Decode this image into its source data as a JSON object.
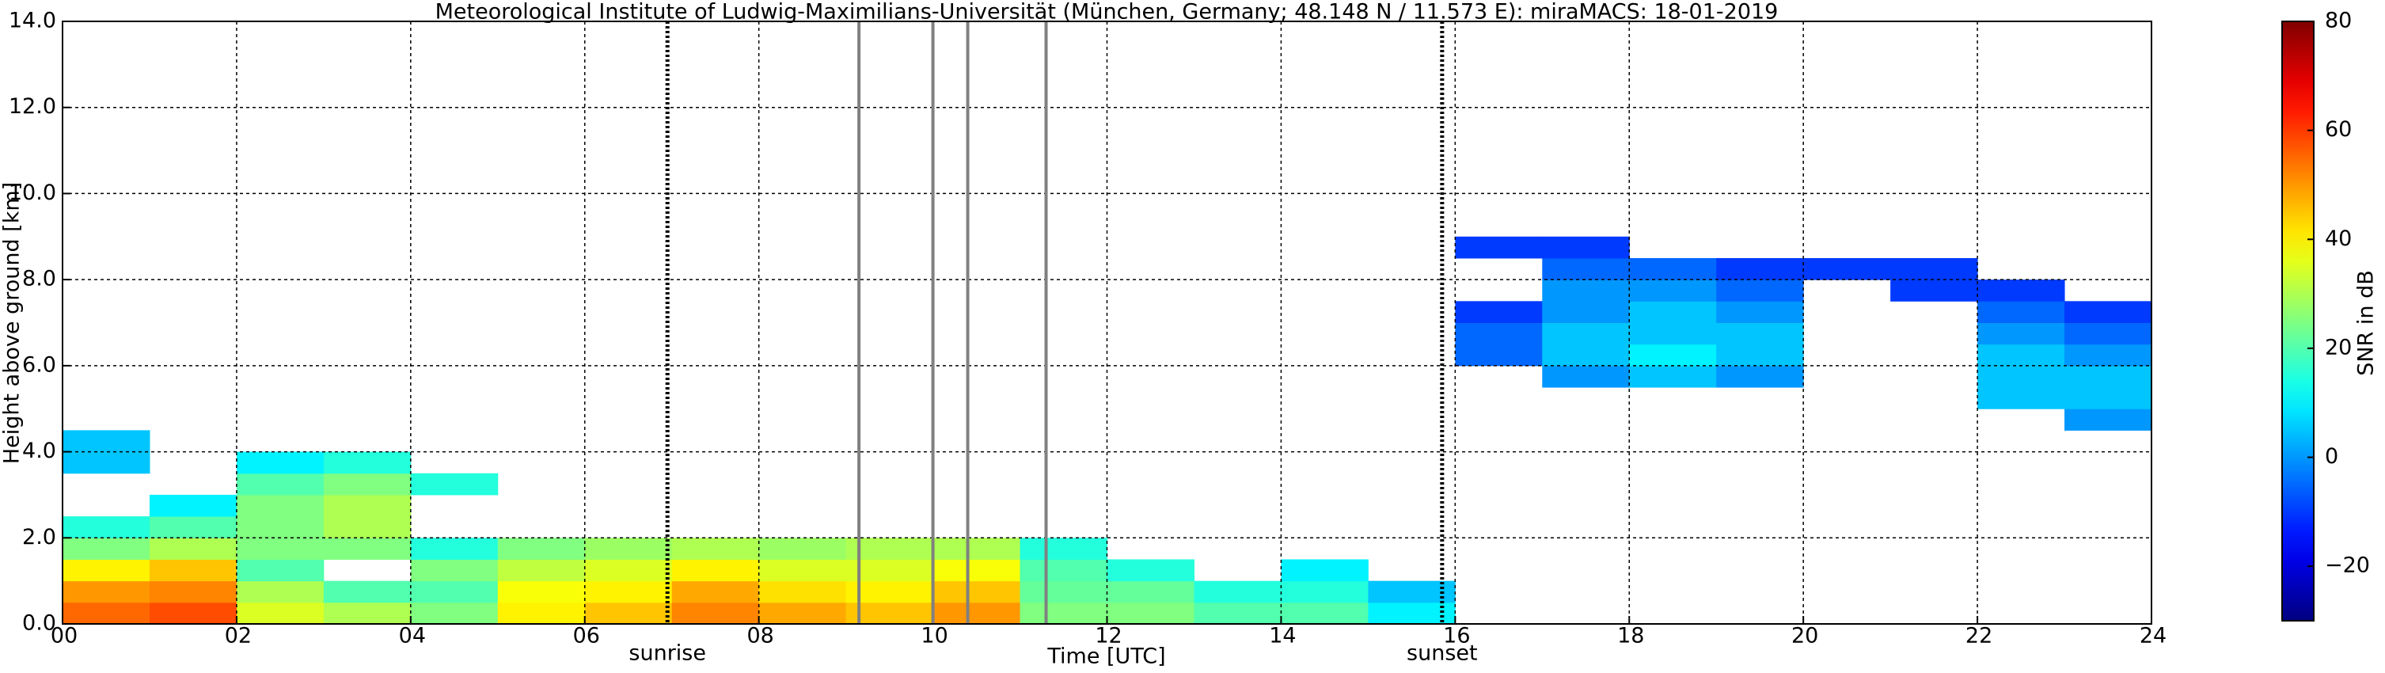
{
  "chart_data": {
    "type": "heatmap",
    "title": "Meteorological Institute of Ludwig-Maximilians-Universität (München, Germany; 48.148 N / 11.573 E):    miraMACS: 18-01-2019",
    "x_label": "Time [UTC]",
    "y_label": "Height above ground [km]",
    "colorbar_label": "SNR in dB",
    "xlim": [
      0,
      24
    ],
    "ylim": [
      0,
      14
    ],
    "xticks": [
      {
        "value": 0,
        "label": "00"
      },
      {
        "value": 2,
        "label": "02"
      },
      {
        "value": 4,
        "label": "04"
      },
      {
        "value": 6,
        "label": "06"
      },
      {
        "value": 8,
        "label": "08"
      },
      {
        "value": 10,
        "label": "10"
      },
      {
        "value": 12,
        "label": "12"
      },
      {
        "value": 14,
        "label": "14"
      },
      {
        "value": 16,
        "label": "16"
      },
      {
        "value": 18,
        "label": "18"
      },
      {
        "value": 20,
        "label": "20"
      },
      {
        "value": 22,
        "label": "22"
      },
      {
        "value": 24,
        "label": "24"
      }
    ],
    "yticks": [
      {
        "value": 0,
        "label": "0.0"
      },
      {
        "value": 2,
        "label": "2.0"
      },
      {
        "value": 4,
        "label": "4.0"
      },
      {
        "value": 6,
        "label": "6.0"
      },
      {
        "value": 8,
        "label": "8.0"
      },
      {
        "value": 10,
        "label": "10.0"
      },
      {
        "value": 12,
        "label": "12.0"
      },
      {
        "value": 14,
        "label": "14.0"
      }
    ],
    "clim": [
      -30,
      80
    ],
    "cticks": [
      {
        "value": -20,
        "label": "−20"
      },
      0,
      20,
      40,
      60,
      80
    ],
    "colormap": "jet",
    "grid": true,
    "markers": [
      {
        "x": 6.95,
        "label": "sunrise"
      },
      {
        "x": 15.85,
        "label": "sunset"
      }
    ],
    "vlines": [
      9.15,
      10.0,
      10.4,
      11.3
    ],
    "x_bins": [
      0,
      1,
      2,
      3,
      4,
      5,
      6,
      7,
      8,
      9,
      10,
      11,
      12,
      13,
      14,
      15,
      16,
      17,
      18,
      19,
      20,
      21,
      22,
      23,
      24
    ],
    "y_bins": [
      0,
      0.5,
      1,
      1.5,
      2,
      2.5,
      3,
      3.5,
      4,
      4.5,
      5,
      5.5,
      6,
      6.5,
      7,
      7.5,
      8,
      8.5,
      9
    ],
    "z": [
      [
        55,
        58,
        35,
        30,
        25,
        40,
        45,
        52,
        48,
        45,
        50,
        25,
        25,
        20,
        20,
        10,
        null,
        null,
        null,
        null,
        null,
        null,
        null,
        null
      ],
      [
        50,
        52,
        30,
        20,
        20,
        38,
        40,
        48,
        42,
        40,
        45,
        22,
        22,
        15,
        15,
        5,
        null,
        null,
        null,
        null,
        null,
        null,
        null,
        null
      ],
      [
        40,
        45,
        20,
        null,
        25,
        32,
        35,
        40,
        35,
        35,
        38,
        20,
        15,
        null,
        10,
        null,
        null,
        null,
        null,
        null,
        null,
        null,
        null,
        null
      ],
      [
        25,
        30,
        25,
        25,
        15,
        25,
        28,
        30,
        28,
        30,
        30,
        15,
        null,
        null,
        null,
        null,
        null,
        null,
        null,
        null,
        null,
        null,
        null,
        null
      ],
      [
        15,
        20,
        25,
        30,
        null,
        null,
        null,
        null,
        null,
        null,
        null,
        null,
        null,
        null,
        null,
        null,
        null,
        null,
        null,
        null,
        null,
        null,
        null,
        null
      ],
      [
        null,
        10,
        25,
        30,
        null,
        null,
        null,
        null,
        null,
        null,
        null,
        null,
        null,
        null,
        null,
        null,
        null,
        null,
        null,
        null,
        null,
        null,
        null,
        null
      ],
      [
        null,
        null,
        20,
        25,
        15,
        null,
        null,
        null,
        null,
        null,
        null,
        null,
        null,
        null,
        null,
        null,
        null,
        null,
        null,
        null,
        null,
        null,
        null,
        null
      ],
      [
        5,
        null,
        10,
        15,
        null,
        null,
        null,
        null,
        null,
        null,
        null,
        null,
        null,
        null,
        null,
        null,
        null,
        null,
        null,
        null,
        null,
        null,
        null,
        null
      ],
      [
        5,
        null,
        null,
        null,
        null,
        null,
        null,
        null,
        null,
        null,
        null,
        null,
        null,
        null,
        null,
        null,
        null,
        null,
        null,
        null,
        null,
        null,
        null,
        null
      ],
      [
        null,
        null,
        null,
        null,
        null,
        null,
        null,
        null,
        null,
        null,
        null,
        null,
        null,
        null,
        null,
        null,
        null,
        null,
        null,
        null,
        null,
        null,
        null,
        0
      ],
      [
        null,
        null,
        null,
        null,
        null,
        null,
        null,
        null,
        null,
        null,
        null,
        null,
        null,
        null,
        null,
        null,
        null,
        null,
        null,
        null,
        null,
        null,
        5,
        5
      ],
      [
        null,
        null,
        null,
        null,
        null,
        null,
        null,
        null,
        null,
        null,
        null,
        null,
        null,
        null,
        null,
        null,
        null,
        0,
        5,
        0,
        null,
        null,
        5,
        5
      ],
      [
        null,
        null,
        null,
        null,
        null,
        null,
        null,
        null,
        null,
        null,
        null,
        null,
        null,
        null,
        null,
        null,
        -5,
        5,
        10,
        5,
        null,
        null,
        5,
        0
      ],
      [
        null,
        null,
        null,
        null,
        null,
        null,
        null,
        null,
        null,
        null,
        null,
        null,
        null,
        null,
        null,
        null,
        -5,
        5,
        5,
        5,
        null,
        null,
        0,
        -5
      ],
      [
        null,
        null,
        null,
        null,
        null,
        null,
        null,
        null,
        null,
        null,
        null,
        null,
        null,
        null,
        null,
        null,
        -10,
        0,
        5,
        0,
        null,
        null,
        -5,
        -10
      ],
      [
        null,
        null,
        null,
        null,
        null,
        null,
        null,
        null,
        null,
        null,
        null,
        null,
        null,
        null,
        null,
        null,
        null,
        0,
        0,
        -5,
        null,
        -10,
        -10,
        null
      ],
      [
        null,
        null,
        null,
        null,
        null,
        null,
        null,
        null,
        null,
        null,
        null,
        null,
        null,
        null,
        null,
        null,
        null,
        -5,
        -5,
        -10,
        -10,
        -10,
        null,
        null
      ],
      [
        null,
        null,
        null,
        null,
        null,
        null,
        null,
        null,
        null,
        null,
        null,
        null,
        null,
        null,
        null,
        null,
        -10,
        -10,
        null,
        null,
        null,
        null,
        null,
        null
      ]
    ]
  }
}
